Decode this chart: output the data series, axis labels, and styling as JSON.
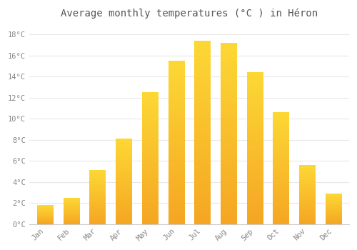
{
  "title": "Average monthly temperatures (°C ) in Héron",
  "months": [
    "Jan",
    "Feb",
    "Mar",
    "Apr",
    "May",
    "Jun",
    "Jul",
    "Aug",
    "Sep",
    "Oct",
    "Nov",
    "Dec"
  ],
  "values": [
    1.8,
    2.5,
    5.1,
    8.1,
    12.5,
    15.5,
    17.4,
    17.2,
    14.4,
    10.6,
    5.6,
    2.9
  ],
  "bar_color_bottom": "#F5A623",
  "bar_color_top": "#FDD835",
  "ylim": [
    0,
    19
  ],
  "yticks": [
    0,
    2,
    4,
    6,
    8,
    10,
    12,
    14,
    16,
    18
  ],
  "background_color": "#ffffff",
  "grid_color": "#e8e8e8",
  "tick_label_color": "#888888",
  "title_fontsize": 10,
  "bar_width": 0.6
}
